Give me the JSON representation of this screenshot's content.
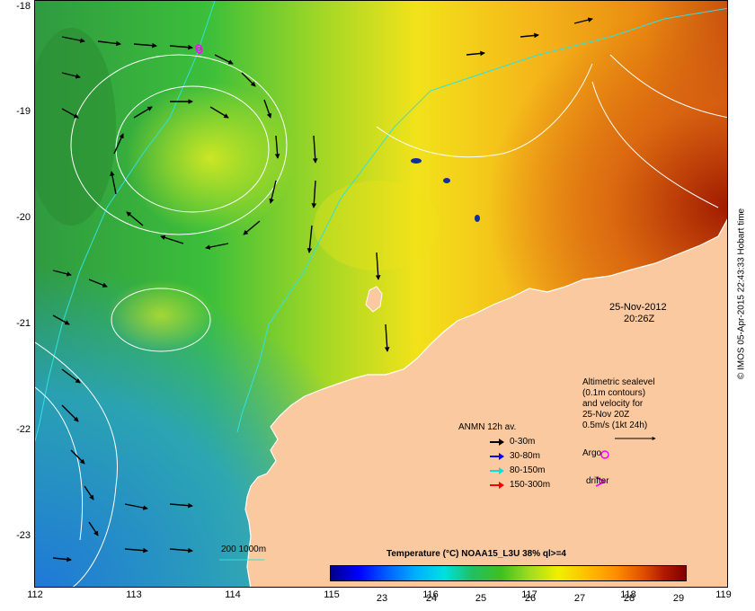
{
  "map": {
    "axes": {
      "x_ticks": [
        "112",
        "113",
        "114",
        "115",
        "116",
        "117",
        "118",
        "119"
      ],
      "y_ticks": [
        "-18",
        "-19",
        "-20",
        "-21",
        "-22",
        "-23"
      ]
    },
    "datetime": {
      "date": "25-Nov-2012",
      "time": "20:26Z"
    },
    "sealevel_note": [
      "Altimetric sealevel",
      "(0.1m contours)",
      "and velocity for",
      "25-Nov 20Z",
      "0.5m/s (1kt 24h)"
    ],
    "legend": {
      "title": "ANMN 12h av.",
      "items": [
        {
          "label": "0-30m",
          "color": "#000000"
        },
        {
          "label": "30-80m",
          "color": "#0000ff"
        },
        {
          "label": "80-150m",
          "color": "#00e0e0"
        },
        {
          "label": "150-300m",
          "color": "#ff0000"
        }
      ],
      "argo_label": "Argo",
      "drifter_label": "drifter",
      "argo_color": "#ff00ff",
      "drifter_color": "#ff00ff"
    },
    "bathy_label": "200  1000m",
    "colorbar": {
      "title": "Temperature (°C) NOAA15_L3U 38% ql>=4",
      "ticks": [
        "23",
        "24",
        "25",
        "26",
        "27",
        "28",
        "29"
      ]
    },
    "credit": "© IMOS 05-Apr-2015 22:43:33 Hobart time",
    "colors": {
      "land": "#fbc9a0",
      "warm_sea": "#e88a10",
      "mid_sea": "#f2e21a",
      "cool_sea": "#3cbf3a",
      "cold_sea": "#2a7fd0"
    }
  }
}
